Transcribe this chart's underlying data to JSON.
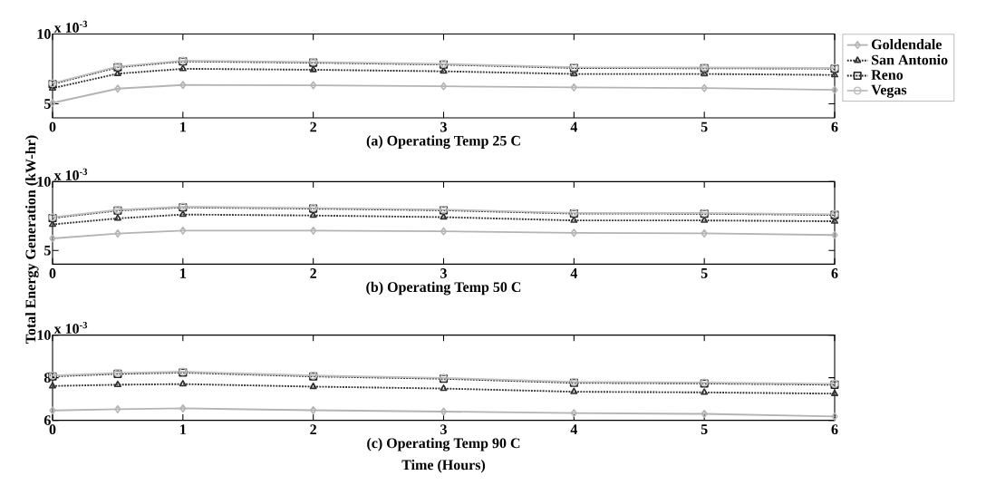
{
  "chart_data": [
    {
      "type": "line",
      "title": "(a) Operating Temp 25 C",
      "x": [
        0,
        0.5,
        1,
        2,
        3,
        4,
        5,
        6
      ],
      "xlim": [
        0,
        6
      ],
      "xticks": [
        0,
        1,
        2,
        3,
        4,
        5,
        6
      ],
      "ylim": [
        4,
        10
      ],
      "yticks": [
        5,
        10
      ],
      "annotations": [
        "x 10$^{-3}$"
      ],
      "legend": "top right",
      "grid": false,
      "series": [
        {
          "name": "Goldendale",
          "color": "#b4b4b4",
          "marker": "diamond",
          "line_style": "solid",
          "values": [
            5.07,
            6.09,
            6.35,
            6.33,
            6.26,
            6.18,
            6.13,
            6.0
          ]
        },
        {
          "name": "San Antonio",
          "color": "#303030",
          "marker": "triangle",
          "line_style": "dotted",
          "values": [
            6.12,
            7.16,
            7.51,
            7.44,
            7.33,
            7.14,
            7.14,
            7.07
          ]
        },
        {
          "name": "Reno",
          "color": "#202020",
          "marker": "square",
          "line_style": "dotted",
          "values": [
            6.42,
            7.62,
            8.04,
            7.95,
            7.81,
            7.57,
            7.55,
            7.52
          ]
        },
        {
          "name": "Vegas",
          "color": "#c0c0c0",
          "marker": "circle",
          "line_style": "solid",
          "values": [
            6.47,
            7.67,
            8.09,
            8.0,
            7.86,
            7.62,
            7.6,
            7.57
          ]
        }
      ]
    },
    {
      "type": "line",
      "title": "(b) Operating Temp 50 C",
      "ylabel": "Total Energy Generation (kW-hr)",
      "x": [
        0,
        0.5,
        1,
        2,
        3,
        4,
        5,
        6
      ],
      "xlim": [
        0,
        6
      ],
      "xticks": [
        0,
        1,
        2,
        3,
        4,
        5,
        6
      ],
      "ylim": [
        4,
        10
      ],
      "yticks": [
        5,
        10
      ],
      "annotations": [
        "x 10$^{-3}$"
      ],
      "grid": false,
      "series": [
        {
          "color": "#b4b4b4",
          "marker": "diamond",
          "line_style": "solid",
          "values": [
            5.87,
            6.23,
            6.44,
            6.44,
            6.39,
            6.28,
            6.24,
            6.12
          ]
        },
        {
          "color": "#303030",
          "marker": "triangle",
          "line_style": "dotted",
          "values": [
            6.89,
            7.33,
            7.61,
            7.54,
            7.42,
            7.18,
            7.18,
            7.12
          ]
        },
        {
          "color": "#202020",
          "marker": "square",
          "line_style": "dotted",
          "values": [
            7.36,
            7.9,
            8.13,
            8.04,
            7.92,
            7.68,
            7.67,
            7.58
          ]
        },
        {
          "color": "#c0c0c0",
          "marker": "circle",
          "line_style": "solid",
          "values": [
            7.41,
            7.95,
            8.18,
            8.09,
            7.97,
            7.73,
            7.72,
            7.63
          ]
        }
      ]
    },
    {
      "type": "line",
      "title": "(c) Operating Temp 90 C",
      "xlabel": "Time (Hours)",
      "x": [
        0,
        0.5,
        1,
        2,
        3,
        4,
        5,
        6
      ],
      "xlim": [
        0,
        6
      ],
      "xticks": [
        0,
        1,
        2,
        3,
        4,
        5,
        6
      ],
      "ylim": [
        6,
        10
      ],
      "yticks": [
        6,
        8,
        10
      ],
      "annotations": [
        "x 10$^{-3}$"
      ],
      "grid": false,
      "series": [
        {
          "color": "#b4b4b4",
          "marker": "diamond",
          "line_style": "solid",
          "values": [
            6.46,
            6.52,
            6.56,
            6.47,
            6.41,
            6.34,
            6.3,
            6.18
          ]
        },
        {
          "color": "#303030",
          "marker": "triangle",
          "line_style": "dotted",
          "values": [
            7.61,
            7.67,
            7.7,
            7.58,
            7.49,
            7.34,
            7.31,
            7.25
          ]
        },
        {
          "color": "#202020",
          "marker": "square",
          "line_style": "dotted",
          "values": [
            8.06,
            8.18,
            8.24,
            8.06,
            7.95,
            7.76,
            7.73,
            7.67
          ]
        },
        {
          "color": "#c0c0c0",
          "marker": "circle",
          "line_style": "solid",
          "values": [
            8.1,
            8.22,
            8.28,
            8.1,
            7.99,
            7.8,
            7.77,
            7.71
          ]
        }
      ]
    }
  ]
}
